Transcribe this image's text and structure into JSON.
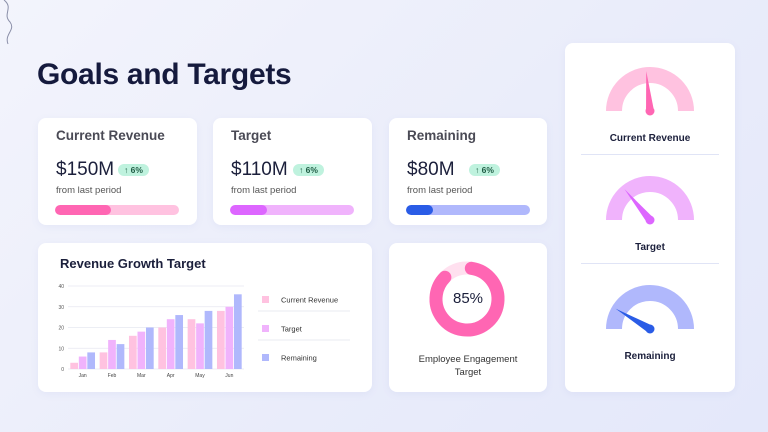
{
  "page_title": "Goals and Targets",
  "kpis": [
    {
      "title": "Current Revenue",
      "value": "$150M",
      "change": "↑ 6%",
      "sub": "from last period",
      "progress": 0.45,
      "color": "#ff66b3",
      "track": "#ffc2e0"
    },
    {
      "title": "Target",
      "value": "$110M",
      "change": "↑ 6%",
      "sub": "from last period",
      "progress": 0.3,
      "color": "#dd66ff",
      "track": "#f0b3fc"
    },
    {
      "title": "Remaining",
      "value": "$80M",
      "change": "↑ 6%",
      "sub": "from last period",
      "progress": 0.22,
      "color": "#2a5ce6",
      "track": "#b0b8fc"
    }
  ],
  "chart_data": {
    "type": "bar",
    "title": "Revenue Growth Target",
    "categories": [
      "Jan",
      "Feb",
      "Mar",
      "Apr",
      "May",
      "Jun"
    ],
    "series": [
      {
        "name": "Current Revenue",
        "values": [
          3,
          8,
          16,
          20,
          24,
          28
        ],
        "color": "#ffc2e0"
      },
      {
        "name": "Target",
        "values": [
          6,
          14,
          18,
          24,
          22,
          30
        ],
        "color": "#f0b3fc"
      },
      {
        "name": "Remaining",
        "values": [
          8,
          12,
          20,
          26,
          28,
          36
        ],
        "color": "#b0b8fc"
      }
    ],
    "yticks": [
      "0",
      "10",
      "20",
      "30",
      "40"
    ],
    "ylim": [
      0,
      40
    ],
    "grid": true,
    "legend": "right"
  },
  "engagement": {
    "value": "85%",
    "fraction": 0.85,
    "label": "Employee Engagement Target",
    "color": "#ff66b3",
    "track": "#ffe0ef"
  },
  "gauges": [
    {
      "label": "Current Revenue",
      "level": 0.47,
      "arc": "#ffc2e0",
      "needle": "#ff66b3"
    },
    {
      "label": "Target",
      "level": 0.28,
      "arc": "#f0b3fc",
      "needle": "#dd66ff"
    },
    {
      "label": "Remaining",
      "level": 0.17,
      "arc": "#b0b8fc",
      "needle": "#2a5ce6"
    }
  ]
}
